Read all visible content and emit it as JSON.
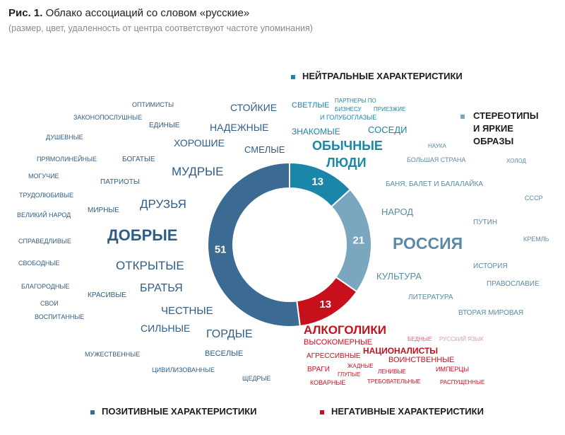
{
  "header": {
    "fig_label": "Рис. 1.",
    "title": "Облако ассоциаций со словом «русские»",
    "subtitle": "(размер, цвет, удаленность от центра соответствуют частоте упоминания)"
  },
  "legend": {
    "neutral": "НЕЙТРАЛЬНЫЕ ХАРАКТЕРИСТИКИ",
    "stereo_1": "СТЕРЕОТИПЫ",
    "stereo_2": "И ЯРКИЕ",
    "stereo_3": "ОБРАЗЫ",
    "positive": "ПОЗИТИВНЫЕ ХАРАКТЕРИСТИКИ",
    "negative": "НЕГАТИВНЫЕ ХАРАКТЕРИСТИКИ"
  },
  "colors": {
    "positive": "#3b6b93",
    "neutral": "#1a86a8",
    "stereotypes": "#7aa6bf",
    "negative": "#c8101c"
  },
  "chart_data": {
    "type": "pie",
    "style": "donut",
    "categories": [
      "ПОЗИТИВНЫЕ ХАРАКТЕРИСТИКИ",
      "НЕЙТРАЛЬНЫЕ ХАРАКТЕРИСТИКИ",
      "СТЕРЕОТИПЫ И ЯРКИЕ ОБРАЗЫ",
      "НЕГАТИВНЫЕ ХАРАКТЕРИСТИКИ"
    ],
    "values": [
      51,
      13,
      21,
      13
    ],
    "title": "Облако ассоциаций со словом «русские»"
  },
  "words": {
    "positive": [
      "ОПТИМИСТЫ",
      "СТОЙКИЕ",
      "ЗАКОНОПОСЛУШНЫЕ",
      "ЕДИНЫЕ",
      "НАДЕЖНЫЕ",
      "ДУШЕВНЫЕ",
      "ХОРОШИЕ",
      "СМЕЛЫЕ",
      "ПРЯМОЛИНЕЙНЫЕ",
      "БОГАТЫЕ",
      "МУДРЫЕ",
      "МОГУЧИЕ",
      "ПАТРИОТЫ",
      "ТРУДОЛЮБИВЫЕ",
      "ДРУЗЬЯ",
      "ВЕЛИКИЙ НАРОД",
      "МИРНЫЕ",
      "ДОБРЫЕ",
      "СПРАВЕДЛИВЫЕ",
      "СВОБОДНЫЕ",
      "ОТКРЫТЫЕ",
      "БЛАГОРОДНЫЕ",
      "БРАТЬЯ",
      "КРАСИВЫЕ",
      "СВОИ",
      "ЧЕСТНЫЕ",
      "ВОСПИТАННЫЕ",
      "СИЛЬНЫЕ",
      "ГОРДЫЕ",
      "МУЖЕСТВЕННЫЕ",
      "ВЕСЕЛЫЕ",
      "ЦИВИЛИЗОВАННЫЕ",
      "ЩЕДРЫЕ"
    ],
    "neutral": [
      "СВЕТЛЫЕ",
      "ПАРТНЕРЫ ПО",
      "БИЗНЕСУ",
      "ПРИЕЗЖИЕ",
      "И ГОЛУБОГЛАЗЫЕ",
      "ЗНАКОМЫЕ",
      "СОСЕДИ",
      "ОБЫЧНЫЕ",
      "ЛЮДИ"
    ],
    "stereotypes": [
      "НАУКА",
      "БОЛЬШАЯ СТРАНА",
      "ХОЛОД",
      "БАНЯ, БАЛЕТ И БАЛАЛАЙКА",
      "СССР",
      "НАРОД",
      "ПУТИН",
      "РОССИЯ",
      "КРЕМЛЬ",
      "ИСТОРИЯ",
      "КУЛЬТУРА",
      "ПРАВОСЛАВИЕ",
      "ЛИТЕРАТУРА",
      "ВТОРАЯ МИРОВАЯ"
    ],
    "negative": [
      "АЛКОГОЛИКИ",
      "БЕДНЫЕ",
      "РУССКИЙ ЯЗЫК",
      "ВЫСОКОМЕРНЫЕ",
      "НАЦИОНАЛИСТЫ",
      "АГРЕССИВНЫЕ",
      "ВОИНСТВЕННЫЕ",
      "ЖАДНЫЕ",
      "ВРАГИ",
      "ГЛУПЫЕ",
      "ЛЕНИВЫЕ",
      "ИМПЕРЦЫ",
      "КОВАРНЫЕ",
      "ТРЕБОВАТЕЛЬНЫЕ",
      "РАСПУЩЕННЫЕ"
    ]
  }
}
